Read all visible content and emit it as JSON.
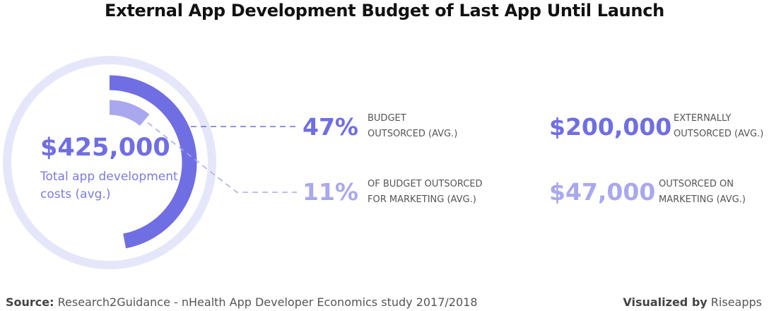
{
  "title": "External App Development Budget of Last App Until Launch",
  "colors": {
    "primary": "#6f6ee3",
    "secondary": "#a9a8ef",
    "ring": "#e6e6fb"
  },
  "chart_data": {
    "type": "pie",
    "title": "External App Development Budget of Last App Until Launch",
    "total": {
      "value": "$425,000",
      "label": "Total app development costs (avg.)"
    },
    "arcs": [
      {
        "name": "BUDGET OUTSORCED (AVG.)",
        "percent": 47
      },
      {
        "name": "OF BUDGET OUTSORCED FOR MARKETING (AVG.)",
        "percent": 11
      }
    ]
  },
  "stats": [
    {
      "percent": "47%",
      "percent_label_l1": "BUDGET",
      "percent_label_l2": "OUTSORCED (AVG.)",
      "amount": "$200,000",
      "amount_label_l1": "EXTERNALLY",
      "amount_label_l2": "OUTSORCED (AVG.)"
    },
    {
      "percent": "11%",
      "percent_label_l1": "OF BUDGET OUTSORCED",
      "percent_label_l2": "FOR MARKETING (AVG.)",
      "amount": "$47,000",
      "amount_label_l1": "OUTSORCED ON",
      "amount_label_l2": "MARKETING (AVG.)"
    }
  ],
  "footer": {
    "source_prefix": "Source:",
    "source_text": "Research2Guidance - nHealth App Developer Economics study 2017/2018",
    "viz_prefix": "Visualized by",
    "viz_text": "Riseapps"
  }
}
